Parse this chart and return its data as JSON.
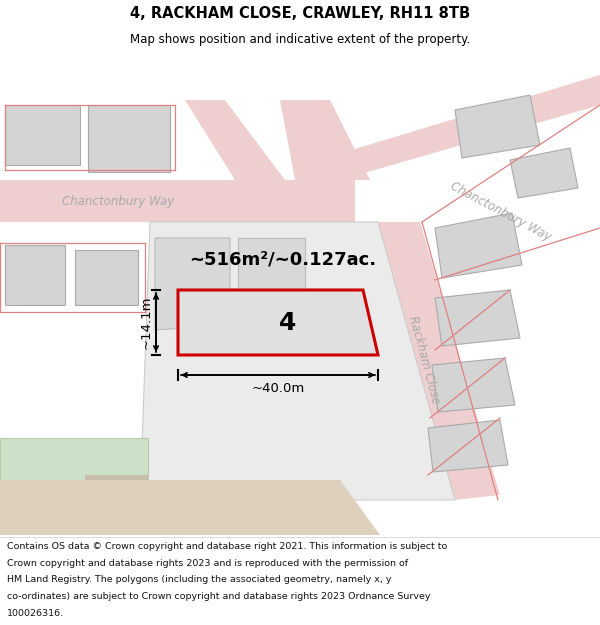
{
  "title": "4, RACKHAM CLOSE, CRAWLEY, RH11 8TB",
  "subtitle": "Map shows position and indicative extent of the property.",
  "footer_lines": [
    "Contains OS data © Crown copyright and database right 2021. This information is subject to",
    "Crown copyright and database rights 2023 and is reproduced with the permission of",
    "HM Land Registry. The polygons (including the associated geometry, namely x, y",
    "co-ordinates) are subject to Crown copyright and database rights 2023 Ordnance Survey",
    "100026316."
  ],
  "map_bg": "#f7f7f7",
  "road_color": "#eecece",
  "road_edge": "#e0a0a0",
  "building_fill": "#d4d4d4",
  "building_edge": "#aaaaaa",
  "block_fill": "#e8e8e8",
  "block_edge": "#cccccc",
  "highlight_fill": "#e0e0e0",
  "highlight_edge": "#cc0000",
  "pink_line": "#e08080",
  "road_label_color": "#aaaaaa",
  "green_color": "#cce0c8",
  "tan_color": "#ddd0bc",
  "area_text": "~516m²/~0.127ac.",
  "number_label": "4",
  "dim_width": "~40.0m",
  "dim_height": "~14.1m"
}
